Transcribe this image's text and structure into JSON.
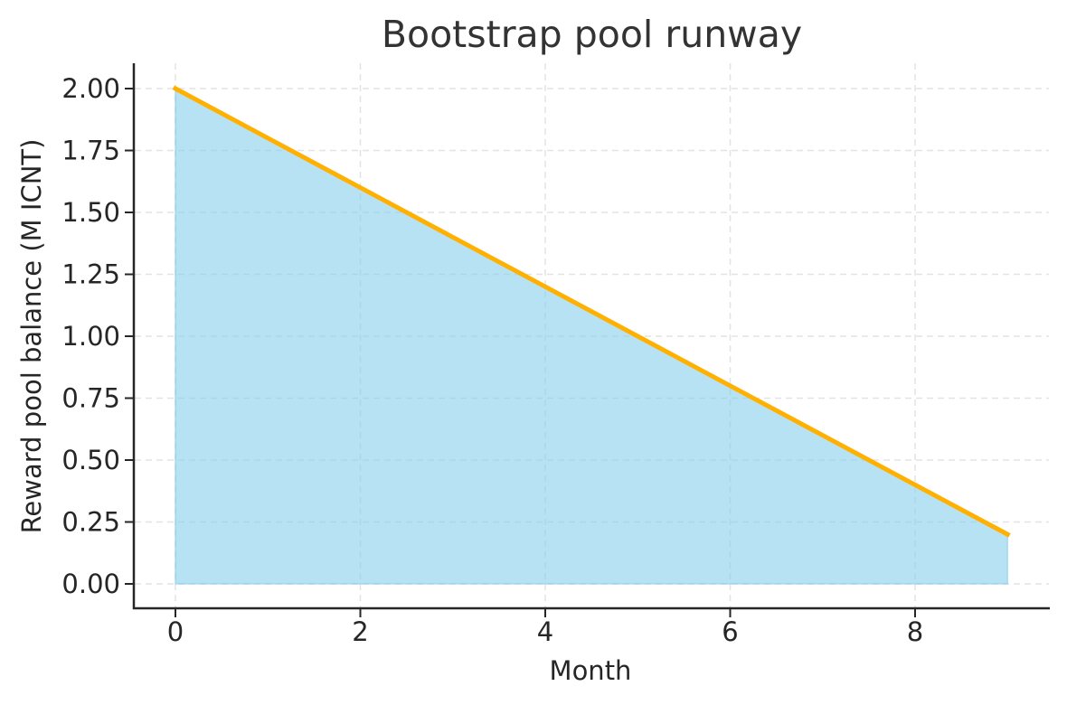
{
  "chart_data": {
    "type": "area",
    "title": "Bootstrap pool runway",
    "xlabel": "Month",
    "ylabel": "Reward pool balance (M ICNT)",
    "x": [
      0,
      1,
      2,
      3,
      4,
      5,
      6,
      7,
      8,
      9
    ],
    "series": [
      {
        "name": "Reward pool balance",
        "values": [
          2.0,
          1.8,
          1.6,
          1.4,
          1.2,
          1.0,
          0.8,
          0.6,
          0.4,
          0.2
        ],
        "line_color": "#FFB000",
        "fill_color": "#87CEEB"
      }
    ],
    "xticks": [
      "0",
      "2",
      "4",
      "6",
      "8"
    ],
    "yticks": [
      "0.00",
      "0.25",
      "0.50",
      "0.75",
      "1.00",
      "1.25",
      "1.50",
      "1.75",
      "2.00"
    ],
    "xlim": [
      -0.45,
      9.45
    ],
    "ylim": [
      -0.1,
      2.1
    ],
    "grid": true,
    "legend": null
  }
}
